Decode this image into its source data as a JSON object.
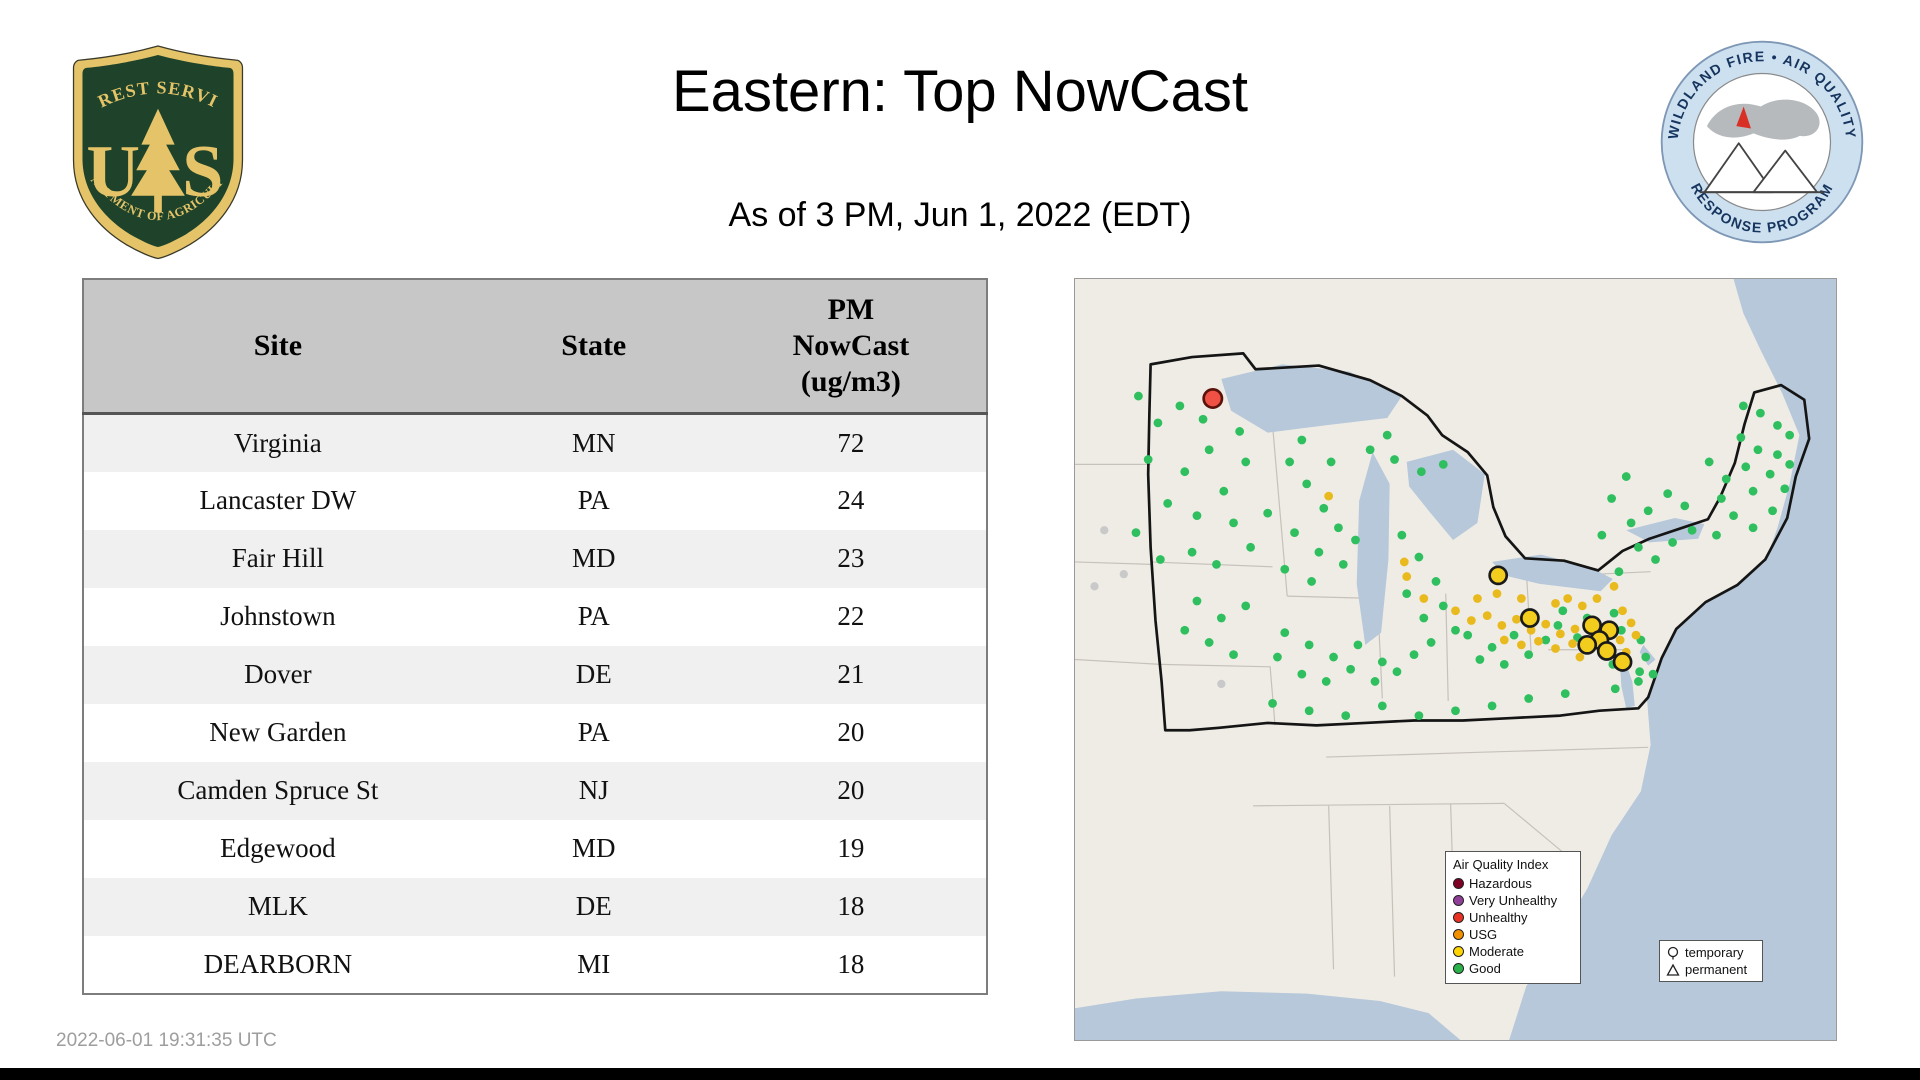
{
  "page": {
    "title": "Eastern: Top NowCast",
    "subtitle": "As of  3 PM, Jun  1, 2022 (EDT)",
    "timestamp": "2022-06-01 19:31:35 UTC"
  },
  "logos": {
    "forest_service": {
      "arc_top": "FOREST SERVICE",
      "us_left": "U",
      "us_right": "S",
      "arc_bottom": "DEPARTMENT OF AGRICULTURE",
      "shield_green": "#1e432a",
      "shield_gold": "#e5c469"
    },
    "wfaqrp": {
      "arc_top": "WILDLAND FIRE • AIR QUALITY",
      "arc_bottom": "RESPONSE PROGRAM",
      "ring_blue": "#cde0f0",
      "text_blue": "#16355e"
    }
  },
  "table": {
    "headers": {
      "site": "Site",
      "state": "State",
      "pm": "PM\nNowCast\n(ug/m3)"
    },
    "rows": [
      {
        "site": "Virginia",
        "state": "MN",
        "value": "72"
      },
      {
        "site": "Lancaster DW",
        "state": "PA",
        "value": "24"
      },
      {
        "site": "Fair Hill",
        "state": "MD",
        "value": "23"
      },
      {
        "site": "Johnstown",
        "state": "PA",
        "value": "22"
      },
      {
        "site": "Dover",
        "state": "DE",
        "value": "21"
      },
      {
        "site": "New Garden",
        "state": "PA",
        "value": "20"
      },
      {
        "site": "Camden Spruce St",
        "state": "NJ",
        "value": "20"
      },
      {
        "site": "Edgewood",
        "state": "MD",
        "value": "19"
      },
      {
        "site": "MLK",
        "state": "DE",
        "value": "18"
      },
      {
        "site": "DEARBORN",
        "state": "MI",
        "value": "18"
      }
    ]
  },
  "map": {
    "colors": {
      "water": "#b6c8d9",
      "land": "#efece6",
      "state_line": "#c6c2ba",
      "region_outline": "#151515"
    },
    "kinds": {
      "g": {
        "fill": "#2fbf5f",
        "r": 3.6
      },
      "m": {
        "fill": "#e9ba1e",
        "r": 3.6
      },
      "x": {
        "fill": "#c9c9c9",
        "r": 3.4
      },
      "M": {
        "fill": "#f3cd1d",
        "r": 7,
        "stroke": "#1a1a1a",
        "sw": 2.2
      },
      "U": {
        "fill": "#ef5244",
        "r": 7.5,
        "stroke": "#5a120b",
        "sw": 2.2
      }
    },
    "points": [
      [
        52,
        96,
        "g"
      ],
      [
        68,
        118,
        "g"
      ],
      [
        86,
        104,
        "g"
      ],
      [
        60,
        148,
        "g"
      ],
      [
        90,
        158,
        "g"
      ],
      [
        110,
        140,
        "g"
      ],
      [
        76,
        184,
        "g"
      ],
      [
        100,
        194,
        "g"
      ],
      [
        122,
        174,
        "g"
      ],
      [
        140,
        150,
        "g"
      ],
      [
        130,
        200,
        "g"
      ],
      [
        96,
        224,
        "g"
      ],
      [
        116,
        234,
        "g"
      ],
      [
        144,
        220,
        "g"
      ],
      [
        158,
        192,
        "g"
      ],
      [
        50,
        208,
        "g"
      ],
      [
        70,
        230,
        "g"
      ],
      [
        105,
        115,
        "g"
      ],
      [
        135,
        125,
        "g"
      ],
      [
        176,
        150,
        "g"
      ],
      [
        190,
        168,
        "g"
      ],
      [
        204,
        188,
        "g"
      ],
      [
        180,
        208,
        "g"
      ],
      [
        200,
        224,
        "g"
      ],
      [
        216,
        204,
        "g"
      ],
      [
        172,
        238,
        "g"
      ],
      [
        194,
        248,
        "g"
      ],
      [
        220,
        234,
        "g"
      ],
      [
        230,
        214,
        "g"
      ],
      [
        186,
        132,
        "g"
      ],
      [
        210,
        150,
        "g"
      ],
      [
        242,
        140,
        "g"
      ],
      [
        262,
        148,
        "g"
      ],
      [
        284,
        158,
        "g"
      ],
      [
        302,
        152,
        "g"
      ],
      [
        256,
        128,
        "g"
      ],
      [
        268,
        210,
        "g"
      ],
      [
        282,
        228,
        "g"
      ],
      [
        296,
        248,
        "g"
      ],
      [
        272,
        258,
        "g"
      ],
      [
        286,
        278,
        "g"
      ],
      [
        302,
        268,
        "g"
      ],
      [
        312,
        288,
        "g"
      ],
      [
        292,
        298,
        "g"
      ],
      [
        278,
        308,
        "g"
      ],
      [
        100,
        264,
        "g"
      ],
      [
        120,
        278,
        "g"
      ],
      [
        140,
        268,
        "g"
      ],
      [
        110,
        298,
        "g"
      ],
      [
        130,
        308,
        "g"
      ],
      [
        90,
        288,
        "g"
      ],
      [
        172,
        290,
        "g"
      ],
      [
        192,
        300,
        "g"
      ],
      [
        212,
        310,
        "g"
      ],
      [
        232,
        300,
        "g"
      ],
      [
        252,
        314,
        "g"
      ],
      [
        186,
        324,
        "g"
      ],
      [
        206,
        330,
        "g"
      ],
      [
        226,
        320,
        "g"
      ],
      [
        246,
        330,
        "g"
      ],
      [
        166,
        310,
        "g"
      ],
      [
        264,
        322,
        "g"
      ],
      [
        322,
        292,
        "g"
      ],
      [
        342,
        302,
        "g"
      ],
      [
        360,
        292,
        "g"
      ],
      [
        332,
        312,
        "g"
      ],
      [
        352,
        316,
        "g"
      ],
      [
        372,
        308,
        "g"
      ],
      [
        386,
        296,
        "g"
      ],
      [
        252,
        350,
        "g"
      ],
      [
        282,
        358,
        "g"
      ],
      [
        312,
        354,
        "g"
      ],
      [
        342,
        350,
        "g"
      ],
      [
        372,
        344,
        "g"
      ],
      [
        402,
        340,
        "g"
      ],
      [
        222,
        358,
        "g"
      ],
      [
        192,
        354,
        "g"
      ],
      [
        162,
        348,
        "g"
      ],
      [
        440,
        180,
        "g"
      ],
      [
        456,
        200,
        "g"
      ],
      [
        470,
        190,
        "g"
      ],
      [
        486,
        176,
        "g"
      ],
      [
        500,
        186,
        "g"
      ],
      [
        462,
        220,
        "g"
      ],
      [
        476,
        230,
        "g"
      ],
      [
        490,
        216,
        "g"
      ],
      [
        446,
        240,
        "g"
      ],
      [
        432,
        210,
        "g"
      ],
      [
        506,
        206,
        "g"
      ],
      [
        452,
        162,
        "g"
      ],
      [
        520,
        150,
        "g"
      ],
      [
        534,
        164,
        "g"
      ],
      [
        550,
        154,
        "g"
      ],
      [
        560,
        140,
        "g"
      ],
      [
        546,
        130,
        "g"
      ],
      [
        530,
        180,
        "g"
      ],
      [
        556,
        174,
        "g"
      ],
      [
        570,
        160,
        "g"
      ],
      [
        540,
        194,
        "g"
      ],
      [
        526,
        210,
        "g"
      ],
      [
        556,
        204,
        "g"
      ],
      [
        572,
        190,
        "g"
      ],
      [
        582,
        172,
        "g"
      ],
      [
        586,
        152,
        "g"
      ],
      [
        576,
        144,
        "g"
      ],
      [
        562,
        110,
        "g"
      ],
      [
        576,
        120,
        "g"
      ],
      [
        586,
        128,
        "g"
      ],
      [
        548,
        104,
        "g"
      ],
      [
        400,
        272,
        "g"
      ],
      [
        420,
        278,
        "g"
      ],
      [
        442,
        274,
        "g"
      ],
      [
        412,
        294,
        "g"
      ],
      [
        448,
        288,
        "g"
      ],
      [
        396,
        284,
        "g"
      ],
      [
        464,
        296,
        "g"
      ],
      [
        468,
        310,
        "g"
      ],
      [
        463,
        322,
        "g"
      ],
      [
        462,
        330,
        "g"
      ],
      [
        474,
        324,
        "g"
      ],
      [
        443,
        336,
        "g"
      ],
      [
        441,
        316,
        "g"
      ],
      [
        312,
        272,
        "m"
      ],
      [
        325,
        280,
        "m"
      ],
      [
        338,
        276,
        "m"
      ],
      [
        350,
        284,
        "m"
      ],
      [
        362,
        279,
        "m"
      ],
      [
        374,
        288,
        "m"
      ],
      [
        386,
        283,
        "m"
      ],
      [
        398,
        291,
        "m"
      ],
      [
        410,
        287,
        "m"
      ],
      [
        352,
        296,
        "m"
      ],
      [
        366,
        300,
        "m"
      ],
      [
        380,
        297,
        "m"
      ],
      [
        394,
        303,
        "m"
      ],
      [
        408,
        299,
        "m"
      ],
      [
        330,
        262,
        "m"
      ],
      [
        346,
        258,
        "m"
      ],
      [
        404,
        262,
        "m"
      ],
      [
        416,
        268,
        "m"
      ],
      [
        428,
        262,
        "m"
      ],
      [
        394,
        266,
        "m"
      ],
      [
        366,
        262,
        "m"
      ],
      [
        272,
        244,
        "m"
      ],
      [
        286,
        262,
        "m"
      ],
      [
        449,
        272,
        "m"
      ],
      [
        442,
        252,
        "m"
      ],
      [
        456,
        282,
        "m"
      ],
      [
        447,
        296,
        "m"
      ],
      [
        460,
        292,
        "m"
      ],
      [
        414,
        310,
        "m"
      ],
      [
        452,
        306,
        "m"
      ],
      [
        208,
        178,
        "m"
      ],
      [
        270,
        232,
        "m"
      ],
      [
        24,
        206,
        "x"
      ],
      [
        40,
        242,
        "x"
      ],
      [
        16,
        252,
        "x"
      ],
      [
        120,
        332,
        "x"
      ],
      [
        347,
        243,
        "M"
      ],
      [
        373,
        278,
        "M"
      ],
      [
        424,
        284,
        "M"
      ],
      [
        438,
        288,
        "M"
      ],
      [
        430,
        296,
        "M"
      ],
      [
        420,
        300,
        "M"
      ],
      [
        436,
        305,
        "M"
      ],
      [
        449,
        314,
        "M"
      ],
      [
        113,
        98,
        "U"
      ]
    ],
    "legend": {
      "title": "Air Quality Index",
      "items": [
        {
          "label": "Hazardous",
          "color": "#7e0023"
        },
        {
          "label": "Very Unhealthy",
          "color": "#8f3f97"
        },
        {
          "label": "Unhealthy",
          "color": "#e93223"
        },
        {
          "label": "USG",
          "color": "#f29100"
        },
        {
          "label": "Moderate",
          "color": "#ffd403"
        },
        {
          "label": "Good",
          "color": "#2bb34b"
        }
      ]
    },
    "marker_legend": {
      "items": [
        {
          "label": "temporary",
          "shape": "circle"
        },
        {
          "label": "permanent",
          "shape": "triangle"
        }
      ]
    }
  }
}
